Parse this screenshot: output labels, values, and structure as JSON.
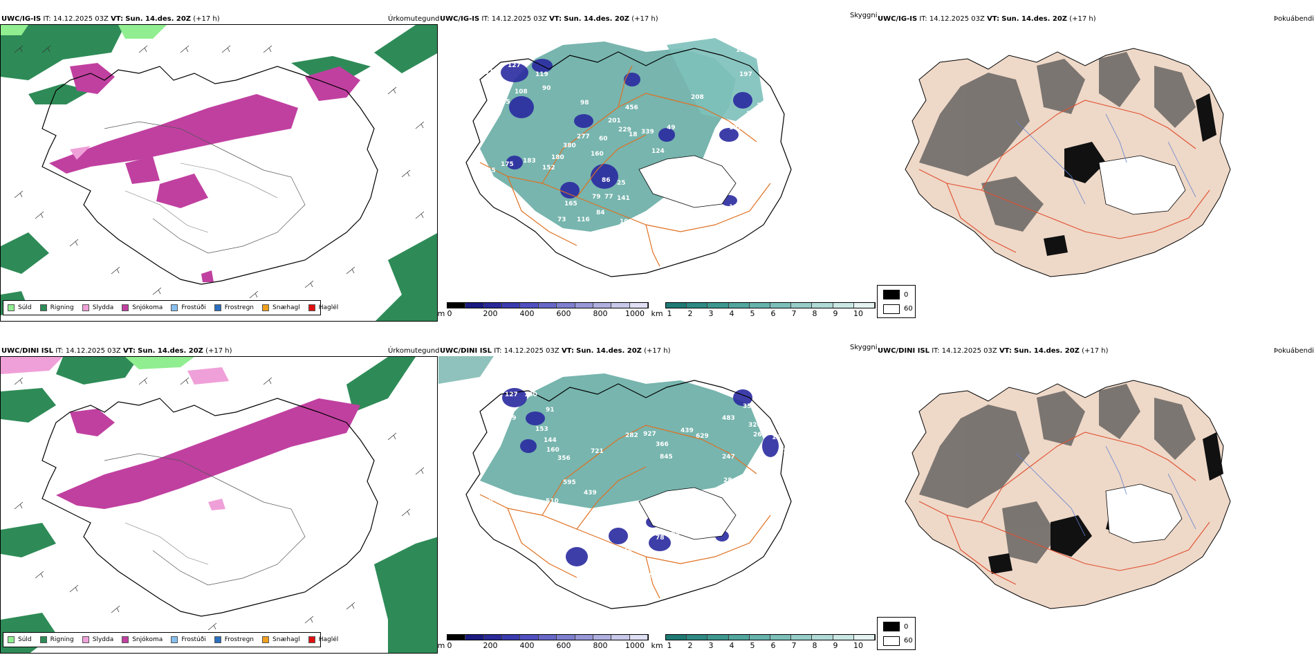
{
  "rows": [
    {
      "model": "UWC/IG-IS",
      "it_label": "IT:",
      "it_value": "14.12.2025 03Z",
      "vt_label": "VT:",
      "vt_value": "Sun. 14.des. 20Z",
      "lead": "(+17 h)",
      "precip_title": "Úrkomutegund",
      "sky_title": "Skyggni",
      "fog_title": "Þokuábendi",
      "elev_labels": [
        "127",
        "119",
        "99",
        "107",
        "108",
        "245",
        "90",
        "98",
        "456",
        "208",
        "190",
        "197",
        "172",
        "188",
        "201",
        "229",
        "339",
        "49",
        "197",
        "18",
        "380",
        "277",
        "60",
        "180",
        "160",
        "124",
        "183",
        "175",
        "145",
        "152",
        "127",
        "86",
        "25",
        "79",
        "77",
        "141",
        "131",
        "165",
        "73",
        "84",
        "100",
        "99",
        "116",
        "23",
        "97",
        "133",
        "70"
      ]
    },
    {
      "model": "UWC/DINI ISL",
      "it_label": "IT:",
      "it_value": "14.12.2025 03Z",
      "vt_label": "VT:",
      "vt_value": "Sun. 14.des. 20Z",
      "lead": "(+17 h)",
      "precip_title": "Úrkomutegund",
      "sky_title": "Skyggni",
      "fog_title": "Þokuábendi",
      "elev_labels": [
        "127",
        "160",
        "91",
        "99",
        "153",
        "144",
        "160",
        "356",
        "282",
        "927",
        "366",
        "845",
        "439",
        "629",
        "483",
        "355",
        "730",
        "326",
        "263",
        "15",
        "17",
        "98",
        "721",
        "595",
        "439",
        "247",
        "523",
        "28",
        "198",
        "100",
        "510",
        "491",
        "167",
        "76",
        "58",
        "84",
        "84",
        "78",
        "97",
        "183",
        "165",
        "30",
        "105"
      ]
    }
  ],
  "precip_legend": [
    {
      "label": "Súld",
      "color": "#90ee90"
    },
    {
      "label": "Rigning",
      "color": "#2e8b57"
    },
    {
      "label": "Slydda",
      "color": "#f0a0d8"
    },
    {
      "label": "Snjókoma",
      "color": "#c040a0"
    },
    {
      "label": "Frostúði",
      "color": "#87bfef"
    },
    {
      "label": "Frostregn",
      "color": "#2a6fc0"
    },
    {
      "label": "Snæhagl",
      "color": "#f0a020"
    },
    {
      "label": "Haglél",
      "color": "#e01010"
    }
  ],
  "elevation_bar": {
    "unit": "m",
    "ticks": [
      "0",
      "200",
      "400",
      "600",
      "800",
      "1000"
    ],
    "colors": [
      "#000000",
      "#1a1a80",
      "#2a2a98",
      "#3b3bb0",
      "#5050c0",
      "#6868c8",
      "#8080d0",
      "#9898d8",
      "#b0b0e0",
      "#c8c8ea",
      "#e0e0f4"
    ]
  },
  "cloud_bar": {
    "unit": "km",
    "ticks": [
      "1",
      "2",
      "3",
      "4",
      "5",
      "6",
      "7",
      "8",
      "9",
      "10"
    ],
    "colors": [
      "#1f7a74",
      "#2e8a82",
      "#3f9890",
      "#51a69e",
      "#66b3ac",
      "#7dc0ba",
      "#96cdc8",
      "#b0dad6",
      "#cae7e4",
      "#e4f3f1"
    ]
  },
  "cloud_box": {
    "top": "0",
    "bottom": "60"
  }
}
